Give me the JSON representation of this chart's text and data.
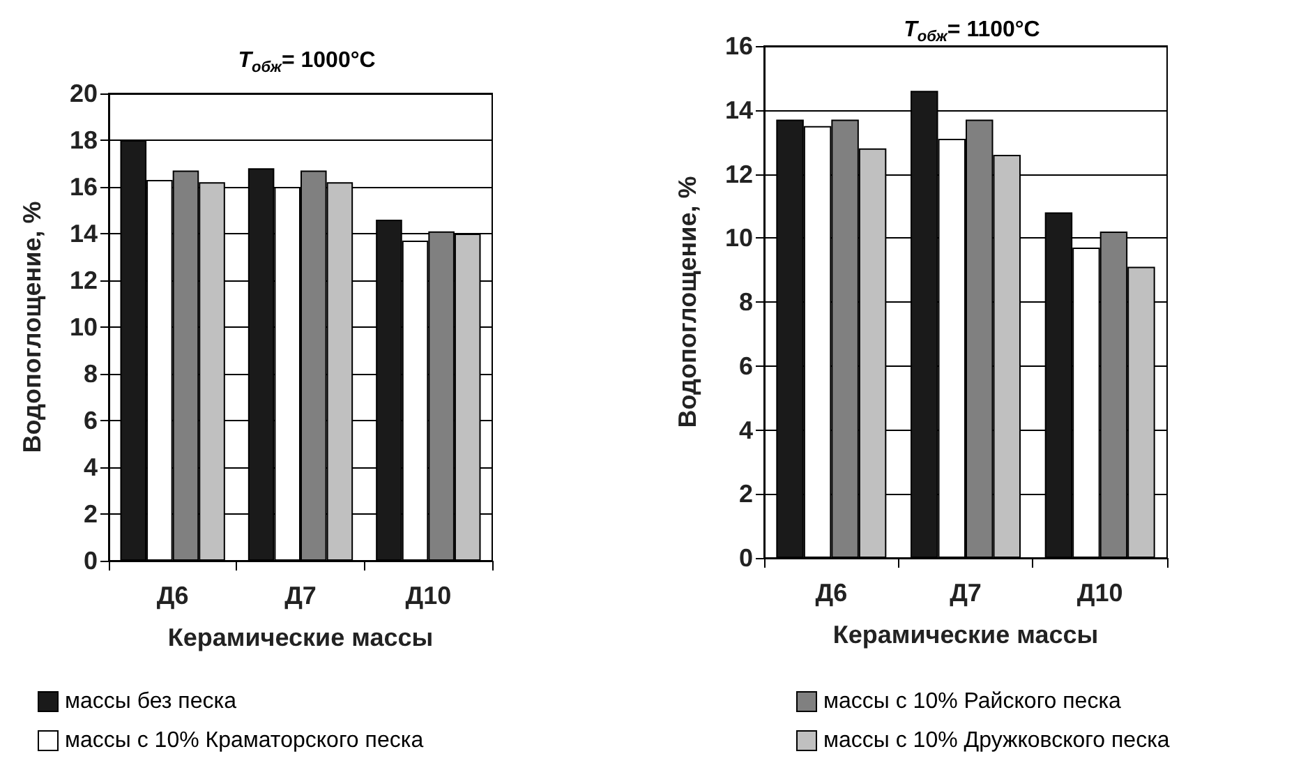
{
  "chart_data": [
    {
      "type": "bar",
      "title": "T$_{обж}$= 1000°C",
      "xlabel": "Керамические массы",
      "ylabel": "Водопоглощение, %",
      "categories": [
        "Д6",
        "Д7",
        "Д10"
      ],
      "ylim": [
        0,
        20
      ],
      "yticks": [
        0,
        2,
        4,
        6,
        8,
        10,
        12,
        14,
        16,
        18,
        20
      ],
      "grid": "y",
      "legend": "bottom",
      "series": [
        {
          "name": "массы без песка",
          "color": "#1a1a1a",
          "values": [
            18.0,
            16.8,
            14.6
          ]
        },
        {
          "name": "массы с 10% Краматорского песка",
          "color": "#ffffff",
          "values": [
            16.3,
            16.0,
            13.7
          ]
        },
        {
          "name": "массы с 10% Райского песка",
          "color": "#808080",
          "values": [
            16.7,
            16.7,
            14.1
          ]
        },
        {
          "name": "массы с 10% Дружковского песка",
          "color": "#c0c0c0",
          "values": [
            16.2,
            16.2,
            14.0
          ]
        }
      ]
    },
    {
      "type": "bar",
      "title": "T$_{обж}$= 1100°C",
      "xlabel": "Керамические массы",
      "ylabel": "Водопоглощение, %",
      "categories": [
        "Д6",
        "Д7",
        "Д10"
      ],
      "ylim": [
        0,
        16
      ],
      "yticks": [
        0,
        2,
        4,
        6,
        8,
        10,
        12,
        14,
        16
      ],
      "grid": "y",
      "series": [
        {
          "color": "#1a1a1a",
          "values": [
            13.7,
            14.6,
            10.8
          ]
        },
        {
          "color": "#ffffff",
          "values": [
            13.5,
            13.1,
            9.7
          ]
        },
        {
          "color": "#808080",
          "values": [
            13.7,
            13.7,
            10.2
          ]
        },
        {
          "color": "#c0c0c0",
          "values": [
            12.8,
            12.6,
            9.1
          ]
        }
      ]
    }
  ]
}
